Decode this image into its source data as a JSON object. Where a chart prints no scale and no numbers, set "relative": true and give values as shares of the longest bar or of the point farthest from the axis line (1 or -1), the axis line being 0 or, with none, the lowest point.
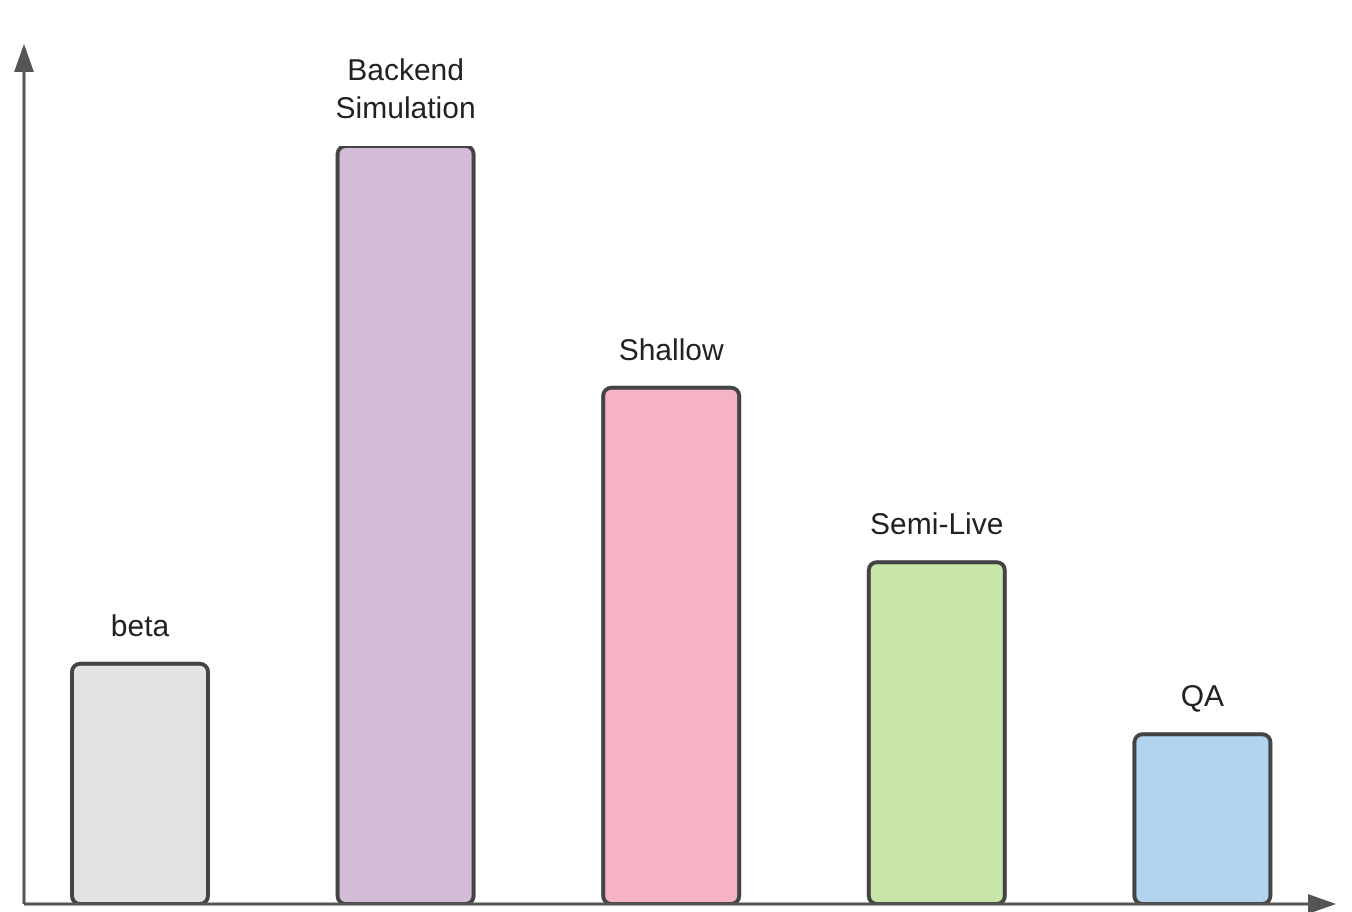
{
  "chart_data": {
    "type": "bar",
    "relative": true,
    "categories": [
      "beta",
      "Backend Simulation",
      "Shallow",
      "Semi-Live",
      "QA"
    ],
    "values": [
      0.317,
      1,
      0.681,
      0.451,
      0.224
    ],
    "colors": [
      "#e3e3e3",
      "#d3bcd5",
      "#f5b3c5",
      "#c7e6a8",
      "#b3d4ee"
    ]
  }
}
